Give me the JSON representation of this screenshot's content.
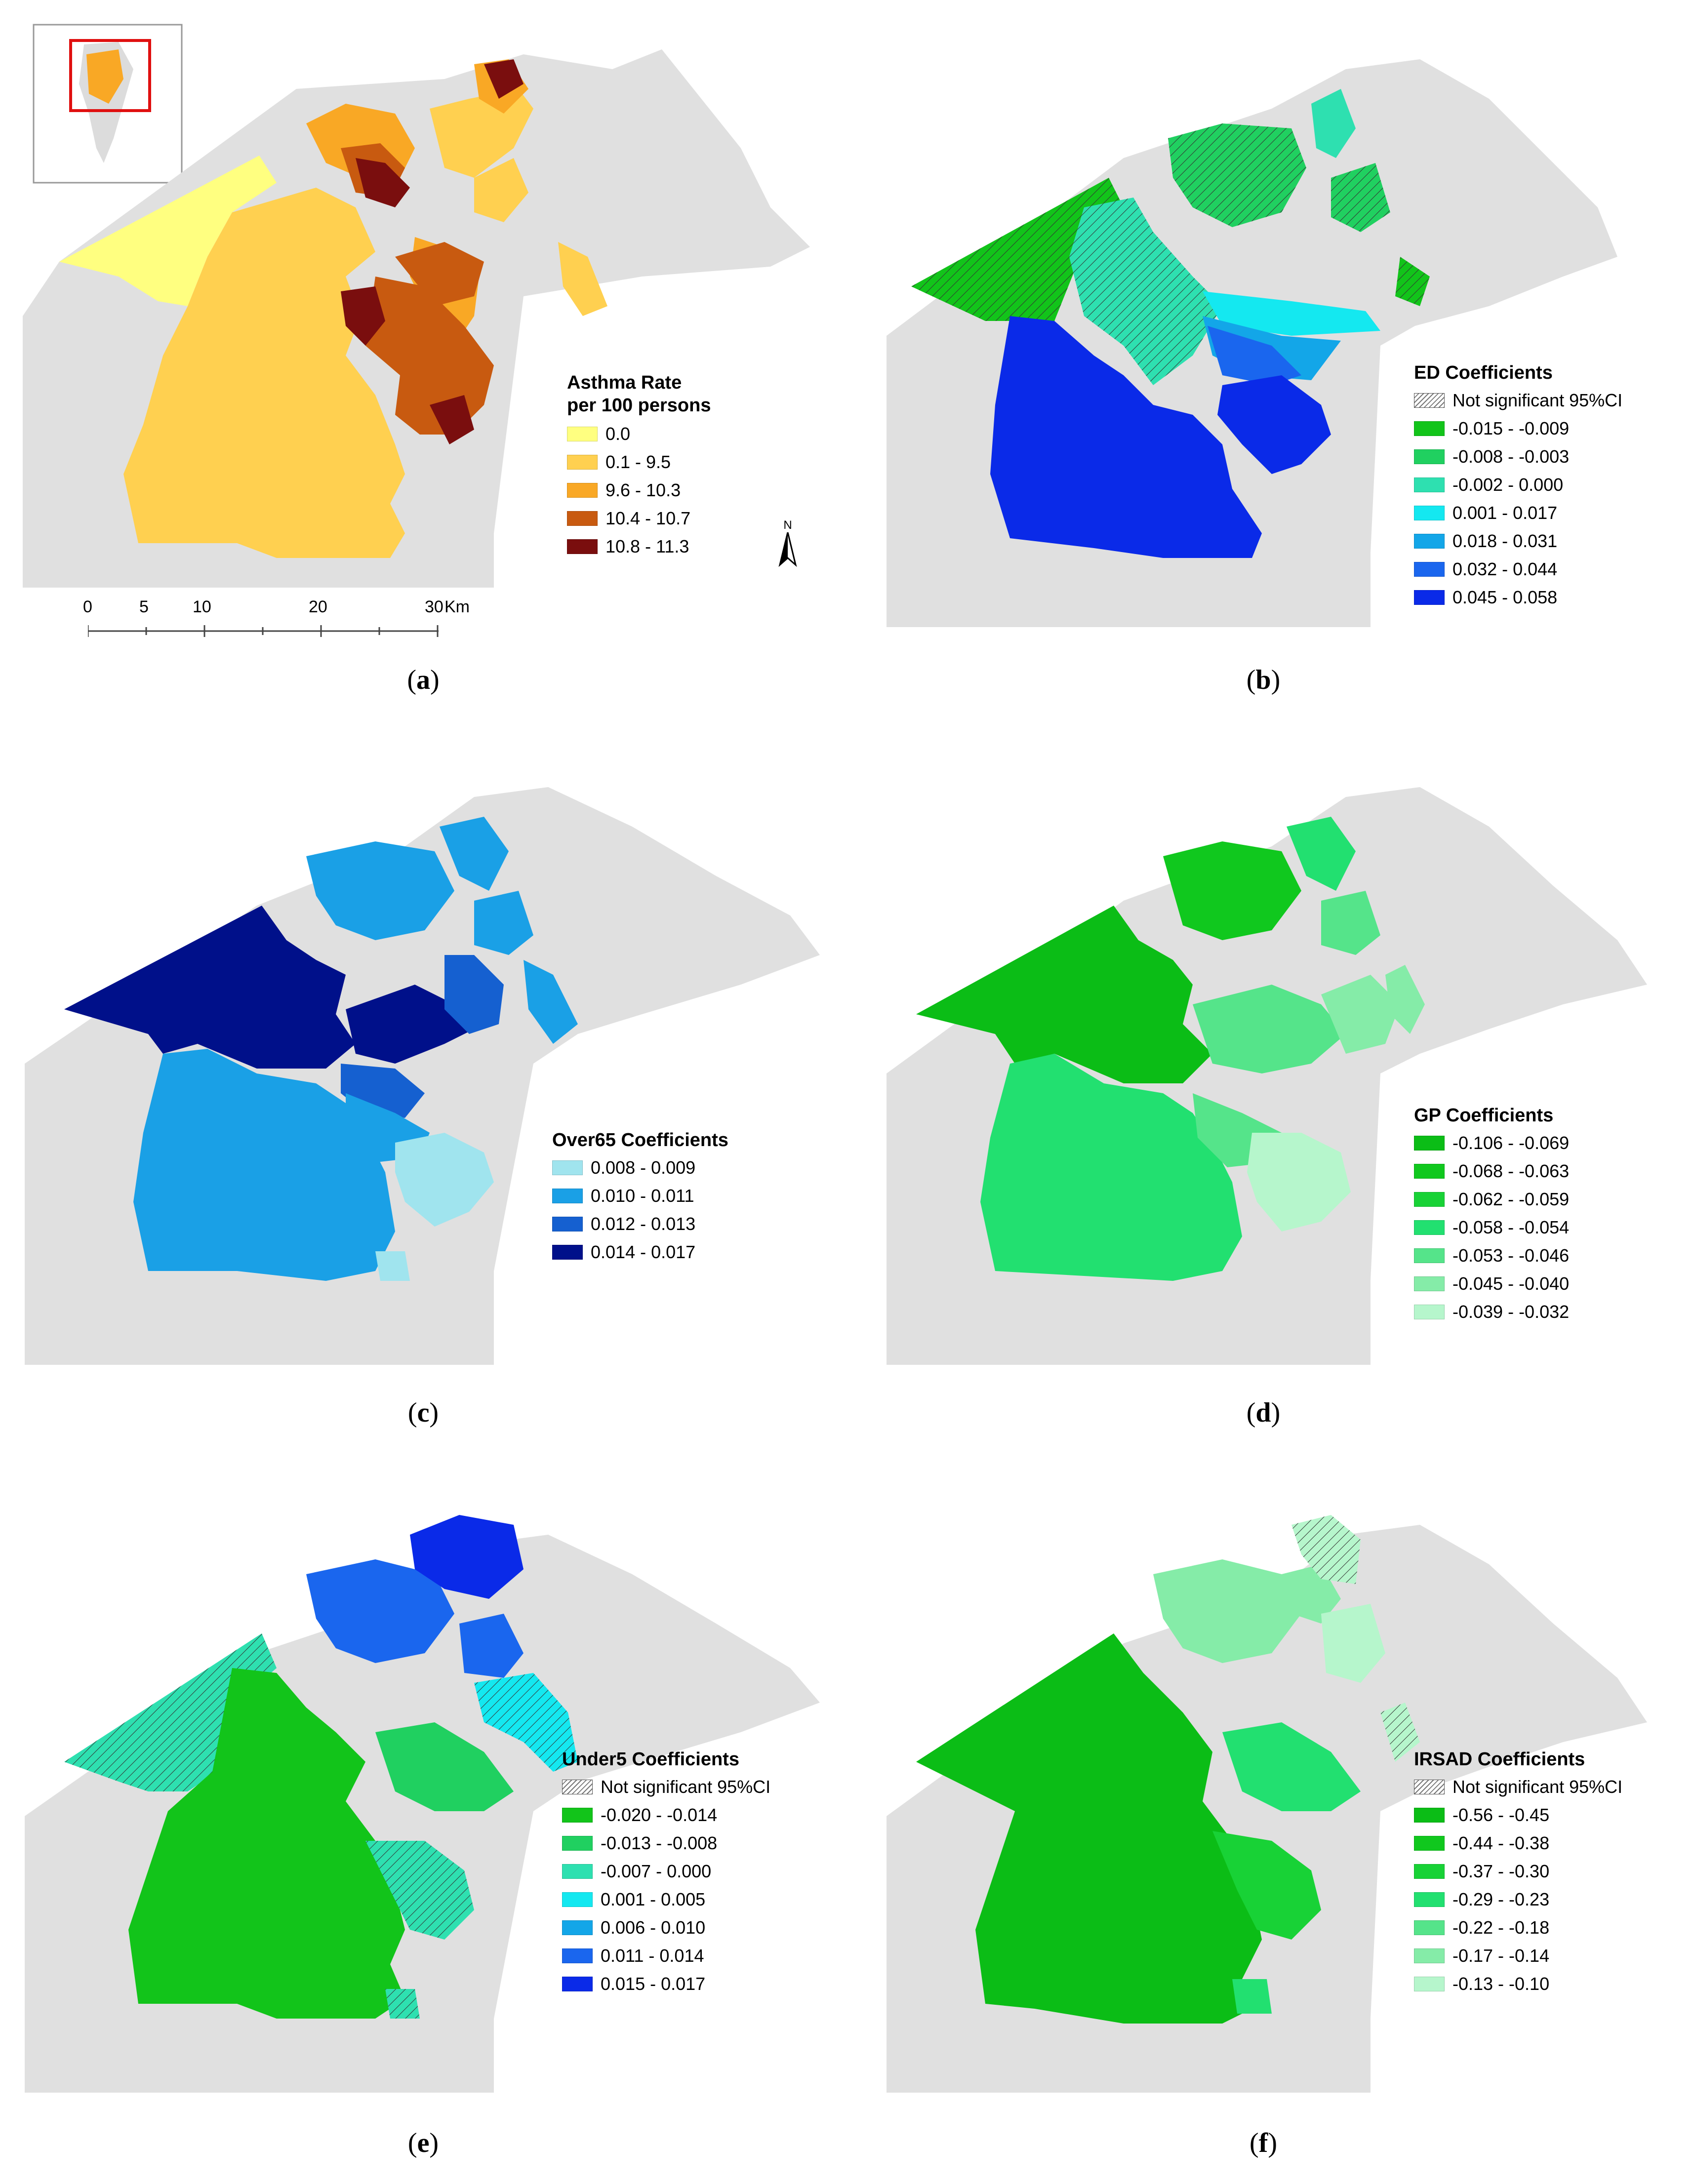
{
  "panels": {
    "a": {
      "caption_label": "a",
      "legend_title_line1": "Asthma Rate",
      "legend_title_line2": "per 100 persons",
      "classes": [
        {
          "label": "0.0",
          "color": "#ffff80"
        },
        {
          "label": "0.1 - 9.5",
          "color": "#ffd050"
        },
        {
          "label": "9.6 - 10.3",
          "color": "#f9a825"
        },
        {
          "label": "10.4 - 10.7",
          "color": "#c85a10"
        },
        {
          "label": "10.8 - 11.3",
          "color": "#7a0e0e"
        }
      ],
      "scale_ticks": [
        "0",
        "5",
        "10",
        "20",
        "30"
      ],
      "scale_unit": "Km",
      "north_label": "N"
    },
    "b": {
      "caption_label": "b",
      "legend_title": "ED Coefficients",
      "not_significant_label": "Not significant 95%CI",
      "classes": [
        {
          "label": "-0.015 - -0.009",
          "color": "#12c41a"
        },
        {
          "label": "-0.008 - -0.003",
          "color": "#20d060"
        },
        {
          "label": "-0.002 - 0.000",
          "color": "#2ee0b0"
        },
        {
          "label": "0.001 - 0.017",
          "color": "#14e8f0"
        },
        {
          "label": "0.018 - 0.031",
          "color": "#13a6e8"
        },
        {
          "label": "0.032 - 0.044",
          "color": "#1a66ee"
        },
        {
          "label": "0.045 - 0.058",
          "color": "#0a2ae8"
        }
      ]
    },
    "c": {
      "caption_label": "c",
      "legend_title": "Over65 Coefficients",
      "classes": [
        {
          "label": "0.008 - 0.009",
          "color": "#a0e4ee"
        },
        {
          "label": "0.010 - 0.011",
          "color": "#1aa0e6"
        },
        {
          "label": "0.012 - 0.013",
          "color": "#1560d0"
        },
        {
          "label": "0.014 - 0.017",
          "color": "#00108a"
        }
      ]
    },
    "d": {
      "caption_label": "d",
      "legend_title": "GP Coefficients",
      "classes": [
        {
          "label": "-0.106 - -0.069",
          "color": "#0bbd16"
        },
        {
          "label": "-0.068 - -0.063",
          "color": "#10c81e"
        },
        {
          "label": "-0.062 - -0.059",
          "color": "#18d236"
        },
        {
          "label": "-0.058 - -0.054",
          "color": "#22e070"
        },
        {
          "label": "-0.053 - -0.046",
          "color": "#55e48a"
        },
        {
          "label": "-0.045 - -0.040",
          "color": "#85eca8"
        },
        {
          "label": "-0.039 - -0.032",
          "color": "#b6f6cc"
        }
      ]
    },
    "e": {
      "caption_label": "e",
      "legend_title": "Under5 Coefficients",
      "not_significant_label": "Not significant 95%CI",
      "classes": [
        {
          "label": "-0.020 - -0.014",
          "color": "#12c41a"
        },
        {
          "label": "-0.013 - -0.008",
          "color": "#20d060"
        },
        {
          "label": "-0.007 - 0.000",
          "color": "#2ee0b0"
        },
        {
          "label": "0.001 - 0.005",
          "color": "#14e8f0"
        },
        {
          "label": "0.006 - 0.010",
          "color": "#13a6e8"
        },
        {
          "label": "0.011 - 0.014",
          "color": "#1a66ee"
        },
        {
          "label": "0.015 - 0.017",
          "color": "#0a2ae8"
        }
      ]
    },
    "f": {
      "caption_label": "f",
      "legend_title": "IRSAD Coefficients",
      "not_significant_label": "Not significant 95%CI",
      "classes": [
        {
          "label": "-0.56 - -0.45",
          "color": "#0bbd16"
        },
        {
          "label": "-0.44 - -0.38",
          "color": "#10c81e"
        },
        {
          "label": "-0.37 - -0.30",
          "color": "#18d236"
        },
        {
          "label": "-0.29 - -0.23",
          "color": "#22e070"
        },
        {
          "label": "-0.22 - -0.18",
          "color": "#55e48a"
        },
        {
          "label": "-0.17 - -0.14",
          "color": "#85eca8"
        },
        {
          "label": "-0.13 - -0.10",
          "color": "#b6f6cc"
        }
      ]
    }
  },
  "map_colors": {
    "background_land": "#e0e0e0"
  }
}
